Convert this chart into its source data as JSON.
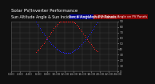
{
  "title": "Solar PV/Inverter Performance",
  "subtitle": "Sun Altitude Angle & Sun Incidence Angle on PV Panels",
  "series1_label": "Sun Altitude Angle",
  "series2_label": "Sun Incidence Angle on PV Panels",
  "color1": "#2222ff",
  "color2": "#ff2222",
  "legend_bg": "#000080",
  "legend_color2_bg": "#cc0000",
  "ylim": [
    0,
    90
  ],
  "xlim": [
    0,
    24
  ],
  "ytick_vals": [
    0,
    10,
    20,
    30,
    40,
    50,
    60,
    70,
    80,
    90
  ],
  "xtick_vals": [
    0,
    2,
    4,
    6,
    8,
    10,
    12,
    14,
    16,
    18,
    20,
    22,
    24
  ],
  "xtick_labels": [
    "0:00",
    "2:00",
    "4:00",
    "6:00",
    "8:00",
    "10:00",
    "12:00",
    "14:00",
    "16:00",
    "18:00",
    "20:00",
    "22:00",
    "24:00"
  ],
  "bg_color": "#101010",
  "plot_bg": "#1a1a1a",
  "grid_color": "#404040",
  "title_fontsize": 4.0,
  "legend_fontsize": 2.8,
  "tick_fontsize": 2.8,
  "tick_color": "#aaaaaa",
  "sunrise": 5.5,
  "sunset": 19.5,
  "peak_alt": 57,
  "panel_tilt": 30
}
